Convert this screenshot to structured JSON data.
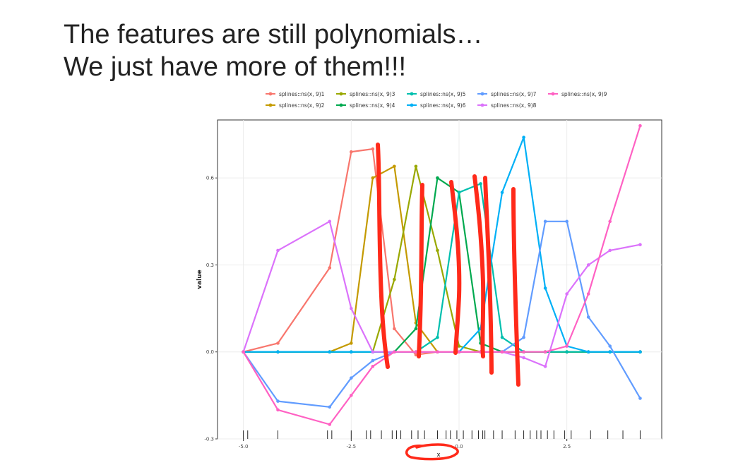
{
  "slide": {
    "title_line1": "The features are still polynomials…",
    "title_line2": "We just have more of them!!!"
  },
  "chart_data": {
    "type": "line",
    "xlabel": "x",
    "ylabel": "value",
    "xlim": [
      -5.6,
      4.7
    ],
    "ylim": [
      -0.3,
      0.8
    ],
    "grid": true,
    "legend_position": "top",
    "x_ticks": [
      -5.0,
      -2.5,
      0.0,
      2.5
    ],
    "x_tick_labels": [
      "-5.0",
      "-2.5",
      "0.0",
      "2.5"
    ],
    "y_ticks": [
      -0.3,
      0.0,
      0.3,
      0.6
    ],
    "y_tick_labels": [
      "-0.3",
      "0.0",
      "0.3",
      "0.6"
    ],
    "x": [
      -5.0,
      -4.2,
      -3.0,
      -2.5,
      -2.0,
      -1.5,
      -1.0,
      -0.5,
      0.0,
      0.5,
      1.0,
      1.5,
      2.0,
      2.5,
      3.0,
      3.5,
      4.2
    ],
    "series": [
      {
        "name": "splines::ns(x, 9)1",
        "color": "#F8766D",
        "values": [
          0.0,
          0.03,
          0.29,
          0.69,
          0.7,
          0.08,
          -0.01,
          0.0,
          0.0,
          0.0,
          0.0,
          0.0,
          0.0,
          0.0,
          0.0,
          0.0,
          0.0
        ]
      },
      {
        "name": "splines::ns(x, 9)2",
        "color": "#C49A00",
        "values": [
          0.0,
          0.0,
          0.0,
          0.03,
          0.6,
          0.64,
          0.1,
          0.0,
          0.0,
          0.0,
          0.0,
          0.0,
          0.0,
          0.0,
          0.0,
          0.0,
          0.0
        ]
      },
      {
        "name": "splines::ns(x, 9)3",
        "color": "#99A800",
        "values": [
          0.0,
          0.0,
          0.0,
          0.0,
          0.0,
          0.25,
          0.64,
          0.35,
          0.02,
          0.0,
          0.0,
          0.0,
          0.0,
          0.0,
          0.0,
          0.0,
          0.0
        ]
      },
      {
        "name": "splines::ns(x, 9)4",
        "color": "#00A94F",
        "values": [
          0.0,
          0.0,
          0.0,
          0.0,
          0.0,
          0.0,
          0.08,
          0.6,
          0.55,
          0.03,
          0.0,
          0.0,
          0.0,
          0.0,
          0.0,
          0.0,
          0.0
        ]
      },
      {
        "name": "splines::ns(x, 9)5",
        "color": "#00BFAE",
        "values": [
          0.0,
          0.0,
          0.0,
          0.0,
          0.0,
          0.0,
          0.0,
          0.05,
          0.55,
          0.58,
          0.05,
          0.0,
          0.0,
          0.0,
          0.0,
          0.0,
          0.0
        ]
      },
      {
        "name": "splines::ns(x, 9)6",
        "color": "#00B0F6",
        "values": [
          0.0,
          0.0,
          0.0,
          0.0,
          0.0,
          0.0,
          0.0,
          0.0,
          0.0,
          0.08,
          0.55,
          0.74,
          0.22,
          0.02,
          0.0,
          0.0,
          0.0
        ]
      },
      {
        "name": "splines::ns(x, 9)7",
        "color": "#619CFF",
        "values": [
          0.0,
          -0.17,
          -0.19,
          -0.09,
          -0.03,
          0.0,
          0.0,
          0.0,
          0.0,
          0.0,
          0.0,
          0.05,
          0.45,
          0.45,
          0.12,
          0.02,
          -0.16
        ]
      },
      {
        "name": "splines::ns(x, 9)8",
        "color": "#DB72FB",
        "values": [
          0.0,
          0.35,
          0.45,
          0.15,
          0.0,
          0.0,
          0.0,
          0.0,
          0.0,
          0.0,
          0.0,
          -0.02,
          -0.05,
          0.2,
          0.3,
          0.35,
          0.37
        ]
      },
      {
        "name": "splines::ns(x, 9)9",
        "color": "#FF61C3",
        "values": [
          0.0,
          -0.2,
          -0.25,
          -0.15,
          -0.05,
          0.0,
          0.0,
          0.0,
          0.0,
          0.0,
          0.0,
          0.0,
          0.0,
          0.02,
          0.2,
          0.45,
          0.78
        ]
      }
    ],
    "rug_x": [
      -5.0,
      -4.9,
      -4.2,
      -3.05,
      -2.95,
      -2.5,
      -2.15,
      -2.05,
      -1.8,
      -1.55,
      -1.45,
      -1.35,
      -1.1,
      -0.95,
      -0.8,
      -0.5,
      -0.3,
      -0.2,
      -0.05,
      0.1,
      0.3,
      0.45,
      0.55,
      0.6,
      0.8,
      1.0,
      1.3,
      1.5,
      1.65,
      1.8,
      1.9,
      2.05,
      2.2,
      2.45,
      2.6,
      3.05,
      3.45,
      3.8,
      4.2
    ]
  },
  "annotations": {
    "strokes_color": "#FF2A1A"
  }
}
